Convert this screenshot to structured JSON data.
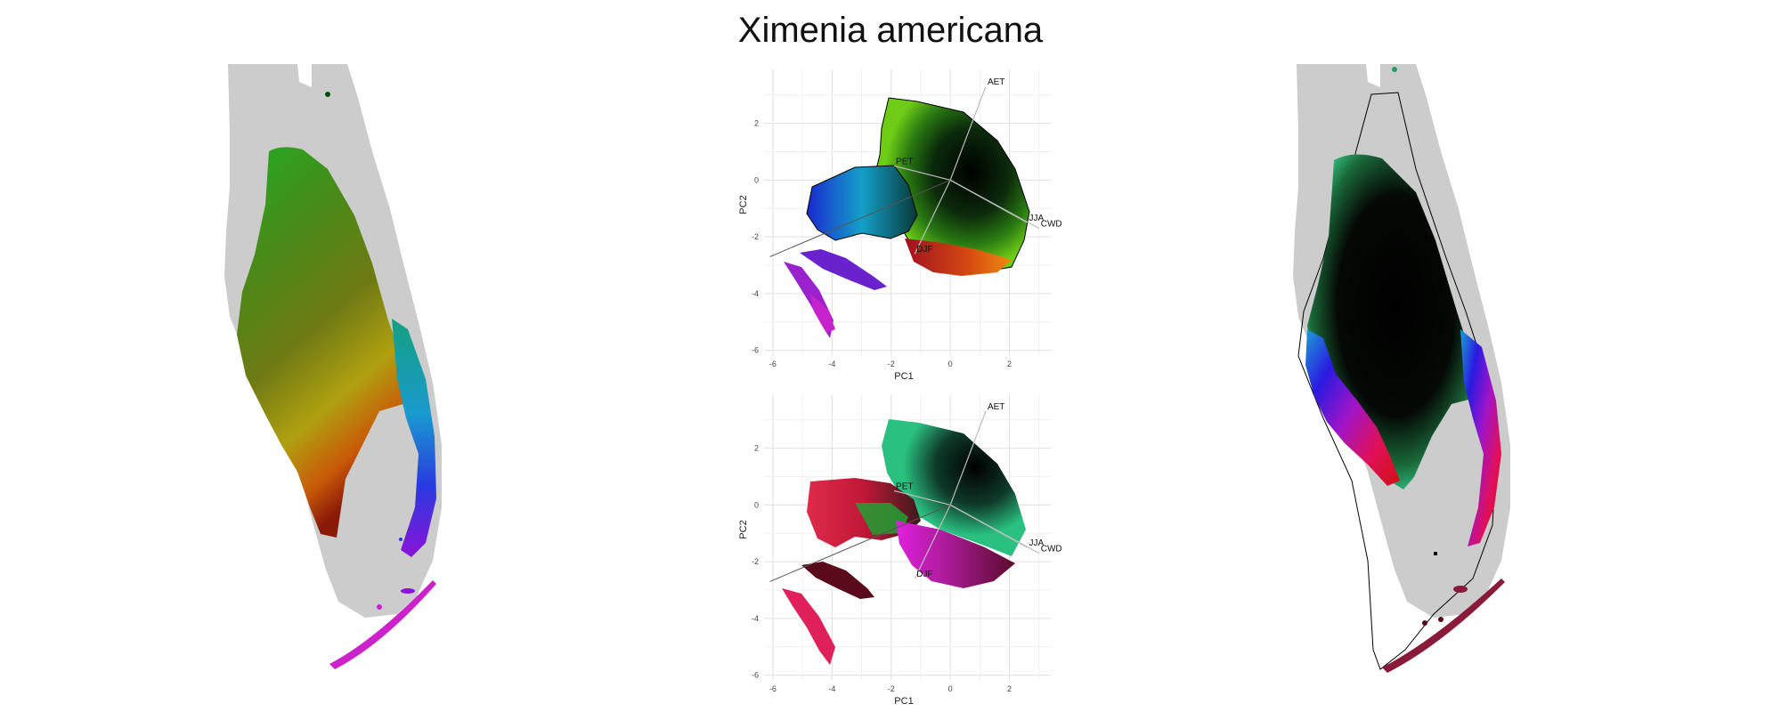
{
  "title": "Ximenia americana",
  "chart_data": [
    {
      "type": "scatter",
      "panel": "pca-top",
      "xlabel": "PC1",
      "ylabel": "PC2",
      "xlim": [
        -6.3,
        3.4
      ],
      "ylim": [
        -6.2,
        3.9
      ],
      "xticks": [
        -6,
        -4,
        -2,
        0,
        2
      ],
      "yticks": [
        -6,
        -4,
        -2,
        0,
        2
      ],
      "grid": true,
      "vectors": [
        {
          "label": "AET",
          "x": 1.2,
          "y": 3.3
        },
        {
          "label": "PET",
          "x": -1.9,
          "y": 0.5
        },
        {
          "label": "JJA",
          "x": 2.6,
          "y": -1.5
        },
        {
          "label": "CWD",
          "x": 3.0,
          "y": -1.7
        },
        {
          "label": "DJF",
          "x": -1.2,
          "y": -2.6
        }
      ]
    },
    {
      "type": "scatter",
      "panel": "pca-bottom",
      "xlabel": "PC1",
      "ylabel": "PC2",
      "xlim": [
        -6.3,
        3.4
      ],
      "ylim": [
        -6.2,
        3.9
      ],
      "xticks": [
        -6,
        -4,
        -2,
        0,
        2
      ],
      "yticks": [
        -6,
        -4,
        -2,
        0,
        2
      ],
      "grid": true,
      "vectors": [
        {
          "label": "AET",
          "x": 1.2,
          "y": 3.3
        },
        {
          "label": "PET",
          "x": -1.9,
          "y": 0.5
        },
        {
          "label": "JJA",
          "x": 2.6,
          "y": -1.5
        },
        {
          "label": "CWD",
          "x": 3.0,
          "y": -1.7
        },
        {
          "label": "DJF",
          "x": -1.2,
          "y": -2.6
        }
      ]
    }
  ],
  "colors": {
    "land": "#cccccc",
    "outline": "#000000",
    "grid": "#e6e6e6"
  }
}
